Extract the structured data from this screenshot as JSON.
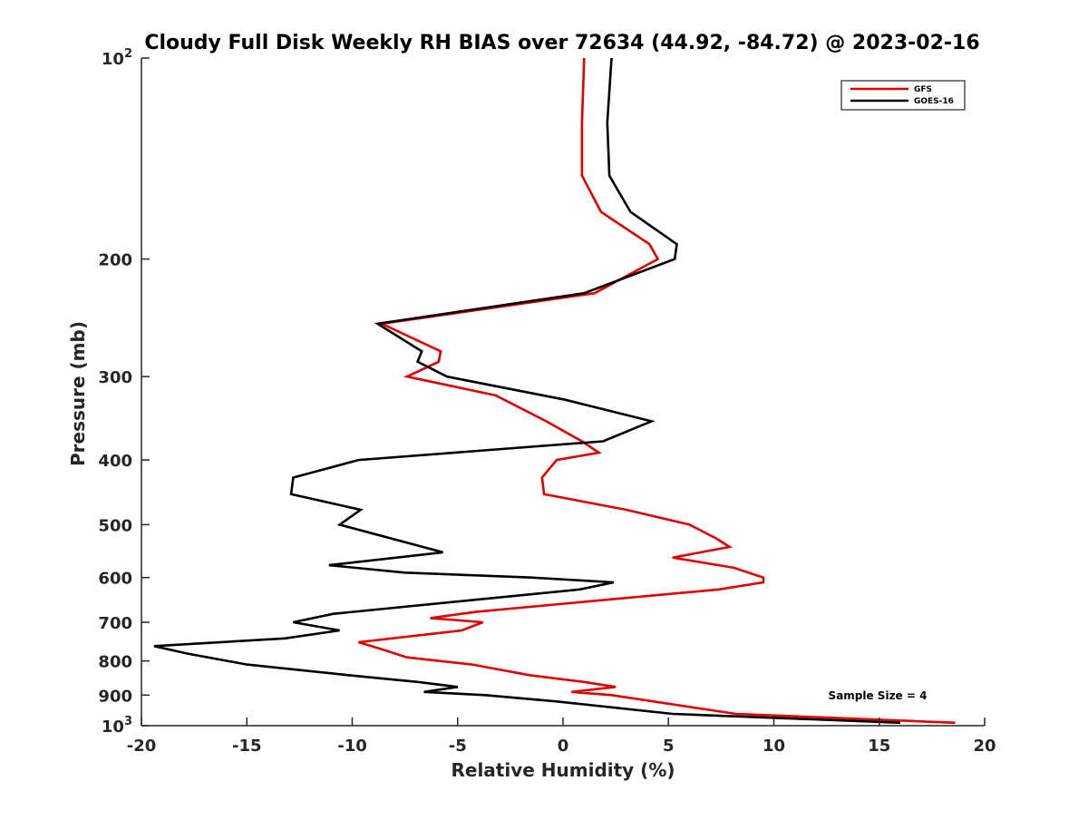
{
  "chart_data": {
    "type": "line",
    "title": "Cloudy Full Disk Weekly RH BIAS over 72634 (44.92, -84.72) @ 2023-02-16",
    "xlabel": "Relative Humidity (%)",
    "ylabel": "Pressure (mb)",
    "xlim": [
      -20,
      20
    ],
    "ylim": [
      100,
      1000
    ],
    "yscale": "log",
    "y_reversed": true,
    "xticks": [
      -20,
      -15,
      -10,
      -5,
      0,
      5,
      10,
      15,
      20
    ],
    "yticks": [
      {
        "value": 100,
        "label": "10",
        "sup": "2"
      },
      {
        "value": 200,
        "label": "200"
      },
      {
        "value": 300,
        "label": "300"
      },
      {
        "value": 400,
        "label": "400"
      },
      {
        "value": 500,
        "label": "500"
      },
      {
        "value": 600,
        "label": "600"
      },
      {
        "value": 700,
        "label": "700"
      },
      {
        "value": 800,
        "label": "800"
      },
      {
        "value": 900,
        "label": "900"
      },
      {
        "value": 1000,
        "label": "10",
        "sup": "3"
      }
    ],
    "grid": false,
    "legend_position": "top-right",
    "annotation": "Sample Size = 4",
    "series": [
      {
        "name": "GFS",
        "color": "#e00000",
        "points": [
          [
            1.0,
            100
          ],
          [
            0.9,
            125
          ],
          [
            0.9,
            150
          ],
          [
            1.8,
            170
          ],
          [
            4.1,
            190
          ],
          [
            4.5,
            200
          ],
          [
            1.5,
            225
          ],
          [
            -8.6,
            250
          ],
          [
            -5.8,
            275
          ],
          [
            -5.9,
            285
          ],
          [
            -7.4,
            300
          ],
          [
            -3.2,
            320
          ],
          [
            -0.8,
            350
          ],
          [
            0.9,
            375
          ],
          [
            1.7,
            390
          ],
          [
            -0.3,
            400
          ],
          [
            -1.0,
            425
          ],
          [
            -0.9,
            450
          ],
          [
            3.0,
            475
          ],
          [
            6.0,
            500
          ],
          [
            7.3,
            525
          ],
          [
            7.9,
            540
          ],
          [
            5.2,
            560
          ],
          [
            8.1,
            580
          ],
          [
            9.5,
            600
          ],
          [
            9.5,
            610
          ],
          [
            7.4,
            625
          ],
          [
            -4.1,
            675
          ],
          [
            -6.3,
            690
          ],
          [
            -3.8,
            700
          ],
          [
            -4.8,
            720
          ],
          [
            -9.7,
            750
          ],
          [
            -8.5,
            770
          ],
          [
            -7.4,
            790
          ],
          [
            -4.3,
            810
          ],
          [
            -1.6,
            840
          ],
          [
            1.0,
            860
          ],
          [
            2.5,
            875
          ],
          [
            0.4,
            890
          ],
          [
            2.3,
            900
          ],
          [
            8.2,
            960
          ],
          [
            18.6,
            990
          ]
        ]
      },
      {
        "name": "GOES-16",
        "color": "#000000",
        "points": [
          [
            2.3,
            100
          ],
          [
            2.1,
            125
          ],
          [
            2.2,
            150
          ],
          [
            3.2,
            170
          ],
          [
            5.4,
            190
          ],
          [
            5.3,
            200
          ],
          [
            1.0,
            225
          ],
          [
            -8.8,
            250
          ],
          [
            -6.7,
            275
          ],
          [
            -6.9,
            285
          ],
          [
            -5.5,
            300
          ],
          [
            0.1,
            325
          ],
          [
            4.2,
            350
          ],
          [
            1.9,
            375
          ],
          [
            -9.7,
            400
          ],
          [
            -12.8,
            425
          ],
          [
            -12.9,
            450
          ],
          [
            -9.6,
            475
          ],
          [
            -10.6,
            500
          ],
          [
            -5.7,
            550
          ],
          [
            -11.1,
            575
          ],
          [
            -7.5,
            590
          ],
          [
            -1.5,
            600
          ],
          [
            2.4,
            610
          ],
          [
            0.8,
            625
          ],
          [
            -10.9,
            680
          ],
          [
            -12.8,
            700
          ],
          [
            -10.6,
            720
          ],
          [
            -13.2,
            740
          ],
          [
            -19.4,
            760
          ],
          [
            -17.8,
            780
          ],
          [
            -15.0,
            810
          ],
          [
            -10.2,
            840
          ],
          [
            -6.9,
            860
          ],
          [
            -5.0,
            875
          ],
          [
            -6.6,
            890
          ],
          [
            -3.7,
            900
          ],
          [
            -0.3,
            920
          ],
          [
            5.2,
            960
          ],
          [
            16.0,
            990
          ]
        ]
      }
    ]
  }
}
